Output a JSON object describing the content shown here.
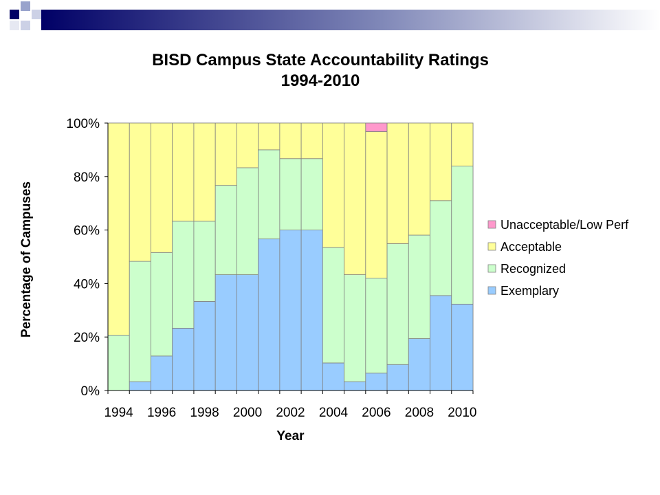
{
  "slide": {
    "title_line_1": "BISD Campus State Accountability Ratings",
    "title_line_2": "1994-2010"
  },
  "colors": {
    "header_navy": "#000066",
    "header_light": "#99A3CC",
    "unacceptable": "#FF99CC",
    "acceptable": "#FFFF99",
    "recognized": "#CCFFCC",
    "exemplary": "#99CCFF"
  },
  "chart_data": {
    "type": "bar",
    "stacked": true,
    "title": "BISD Campus State Accountability Ratings 1994-2010",
    "xlabel": "Year",
    "ylabel": "Percentage of Campuses",
    "ylim": [
      0,
      100
    ],
    "y_ticks": [
      "0%",
      "20%",
      "40%",
      "60%",
      "80%",
      "100%"
    ],
    "categories": [
      "1994",
      "1995",
      "1996",
      "1997",
      "1998",
      "1999",
      "2000",
      "2001",
      "2002",
      "2003",
      "2004",
      "2005",
      "2006",
      "2007",
      "2008",
      "2009",
      "2010"
    ],
    "x_tick_labels": [
      "1994",
      "1996",
      "1998",
      "2000",
      "2002",
      "2004",
      "2006",
      "2008",
      "2010"
    ],
    "legend_position": "right",
    "series": [
      {
        "name": "Exemplary",
        "color": "#99CCFF",
        "values": [
          0,
          3.3,
          12.9,
          23.3,
          33.3,
          43.3,
          43.3,
          56.7,
          60,
          60,
          10.3,
          3.3,
          6.5,
          9.7,
          19.4,
          35.5,
          32.3
        ]
      },
      {
        "name": "Recognized",
        "color": "#CCFFCC",
        "values": [
          20.7,
          45,
          38.7,
          40,
          30,
          33.4,
          40,
          33.3,
          26.7,
          26.7,
          43.2,
          40,
          35.5,
          45.2,
          38.7,
          35.5,
          51.6
        ]
      },
      {
        "name": "Acceptable",
        "color": "#FFFF99",
        "values": [
          79.3,
          51.7,
          48.4,
          36.7,
          36.7,
          23.3,
          16.7,
          10,
          13.3,
          13.3,
          46.5,
          56.7,
          54.8,
          45.1,
          41.9,
          29,
          16.1
        ]
      },
      {
        "name": "Unacceptable/Low Perf",
        "color": "#FF99CC",
        "values": [
          0,
          0,
          0,
          0,
          0,
          0,
          0,
          0,
          0,
          0,
          0,
          0,
          3.2,
          0,
          0,
          0,
          0
        ]
      }
    ],
    "legend_order": [
      "Unacceptable/Low Perf",
      "Acceptable",
      "Recognized",
      "Exemplary"
    ]
  }
}
